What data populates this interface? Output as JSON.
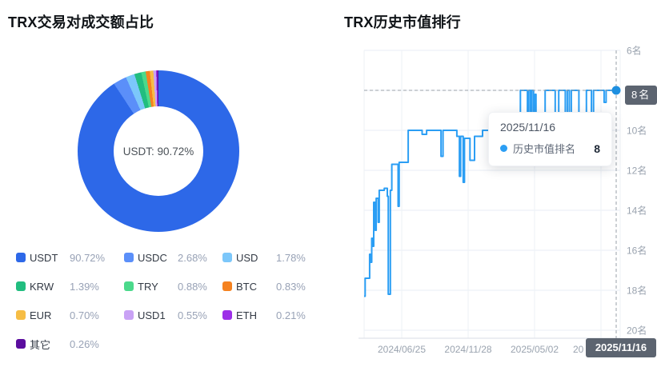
{
  "left_panel": {
    "title": "TRX交易对成交额占比",
    "center_label": "USDT: 90.72%",
    "legend": [
      {
        "label": "USDT",
        "value": "90.72%",
        "color": "#2d68e8"
      },
      {
        "label": "USDC",
        "value": "2.68%",
        "color": "#5b8ff9"
      },
      {
        "label": "USD",
        "value": "1.78%",
        "color": "#7cc7fa"
      },
      {
        "label": "KRW",
        "value": "1.39%",
        "color": "#21bd7f"
      },
      {
        "label": "TRY",
        "value": "0.88%",
        "color": "#4bd98b"
      },
      {
        "label": "BTC",
        "value": "0.83%",
        "color": "#f58220"
      },
      {
        "label": "EUR",
        "value": "0.70%",
        "color": "#f6bd45"
      },
      {
        "label": "USD1",
        "value": "0.55%",
        "color": "#c9a2f5"
      },
      {
        "label": "ETH",
        "value": "0.21%",
        "color": "#9d2fe8"
      },
      {
        "label": "其它",
        "value": "0.26%",
        "color": "#5b0d9e"
      }
    ]
  },
  "right_panel": {
    "title": "TRX历史市值排行",
    "tooltip": {
      "date": "2025/11/16",
      "series_label": "历史市值排名",
      "value": "8"
    },
    "axis_badge": "8名",
    "x_badge": "2025/11/16",
    "y_ticks": [
      "6名",
      "8名",
      "10名",
      "12名",
      "14名",
      "16名",
      "18名",
      "20名"
    ],
    "x_ticks": [
      "2024/06/25",
      "2024/11/28",
      "2025/05/02",
      "20"
    ]
  },
  "chart_data": [
    {
      "type": "pie",
      "subtype": "donut",
      "title": "TRX交易对成交额占比",
      "labels": [
        "USDT",
        "USDC",
        "USD",
        "KRW",
        "TRY",
        "BTC",
        "EUR",
        "USD1",
        "ETH",
        "其它"
      ],
      "values": [
        90.72,
        2.68,
        1.78,
        1.39,
        0.88,
        0.83,
        0.7,
        0.55,
        0.21,
        0.26
      ],
      "colors": [
        "#2d68e8",
        "#5b8ff9",
        "#7cc7fa",
        "#21bd7f",
        "#4bd98b",
        "#f58220",
        "#f6bd45",
        "#c9a2f5",
        "#9d2fe8",
        "#5b0d9e"
      ],
      "center_label": "USDT: 90.72%",
      "start_angle_deg": 0,
      "direction": "clockwise",
      "legend_position": "bottom"
    },
    {
      "type": "line",
      "title": "TRX历史市值排行",
      "line_color": "#2b9ef4",
      "grid": true,
      "legend_position": "none",
      "y_axis": {
        "min": 6,
        "max": 20,
        "tick_step": 2,
        "unit": "名",
        "inverted": true,
        "side": "right"
      },
      "x_tick_labels": [
        "2024/06/25",
        "2024/11/28",
        "2025/05/02",
        "2025/11/16"
      ],
      "highlight_point": {
        "date": "2025/11/16",
        "series": "历史市值排名",
        "rank": 8
      },
      "series": [
        {
          "name": "历史市值排名",
          "points_x_fraction_rank": [
            [
              0.0,
              18.3
            ],
            [
              0.004,
              18.3
            ],
            [
              0.004,
              17.4
            ],
            [
              0.022,
              17.4
            ],
            [
              0.022,
              16.2
            ],
            [
              0.026,
              16.2
            ],
            [
              0.026,
              16.6
            ],
            [
              0.03,
              16.6
            ],
            [
              0.03,
              15.4
            ],
            [
              0.034,
              15.4
            ],
            [
              0.034,
              15.8
            ],
            [
              0.038,
              15.8
            ],
            [
              0.038,
              13.6
            ],
            [
              0.044,
              13.6
            ],
            [
              0.044,
              15.0
            ],
            [
              0.048,
              15.0
            ],
            [
              0.048,
              13.4
            ],
            [
              0.056,
              13.4
            ],
            [
              0.056,
              14.6
            ],
            [
              0.06,
              14.6
            ],
            [
              0.06,
              13.0
            ],
            [
              0.08,
              13.0
            ],
            [
              0.08,
              12.9
            ],
            [
              0.092,
              12.9
            ],
            [
              0.092,
              13.3
            ],
            [
              0.096,
              13.3
            ],
            [
              0.096,
              18.2
            ],
            [
              0.104,
              18.2
            ],
            [
              0.104,
              13.0
            ],
            [
              0.11,
              13.0
            ],
            [
              0.11,
              11.7
            ],
            [
              0.135,
              11.7
            ],
            [
              0.135,
              13.8
            ],
            [
              0.139,
              13.8
            ],
            [
              0.139,
              11.6
            ],
            [
              0.175,
              11.6
            ],
            [
              0.175,
              10.0
            ],
            [
              0.23,
              10.0
            ],
            [
              0.23,
              10.2
            ],
            [
              0.248,
              10.2
            ],
            [
              0.248,
              10.0
            ],
            [
              0.305,
              10.0
            ],
            [
              0.305,
              11.3
            ],
            [
              0.313,
              11.3
            ],
            [
              0.313,
              10.0
            ],
            [
              0.368,
              10.0
            ],
            [
              0.368,
              10.3
            ],
            [
              0.378,
              10.3
            ],
            [
              0.378,
              12.3
            ],
            [
              0.383,
              12.3
            ],
            [
              0.383,
              10.3
            ],
            [
              0.393,
              10.3
            ],
            [
              0.393,
              12.6
            ],
            [
              0.398,
              12.6
            ],
            [
              0.398,
              10.4
            ],
            [
              0.42,
              10.4
            ],
            [
              0.42,
              11.5
            ],
            [
              0.438,
              11.5
            ],
            [
              0.438,
              10.3
            ],
            [
              0.47,
              10.3
            ],
            [
              0.47,
              10.0
            ],
            [
              0.52,
              10.0
            ],
            [
              0.52,
              9.5
            ],
            [
              0.57,
              9.5
            ],
            [
              0.57,
              9.3
            ],
            [
              0.62,
              9.3
            ],
            [
              0.62,
              8.0
            ],
            [
              0.648,
              8.0
            ],
            [
              0.648,
              9.5
            ],
            [
              0.653,
              9.5
            ],
            [
              0.653,
              8.0
            ],
            [
              0.66,
              8.0
            ],
            [
              0.66,
              9.6
            ],
            [
              0.665,
              9.6
            ],
            [
              0.665,
              8.0
            ],
            [
              0.672,
              8.0
            ],
            [
              0.672,
              9.5
            ],
            [
              0.678,
              9.5
            ],
            [
              0.678,
              8.2
            ],
            [
              0.682,
              8.2
            ],
            [
              0.682,
              9.3
            ],
            [
              0.718,
              9.3
            ],
            [
              0.718,
              8.0
            ],
            [
              0.758,
              8.0
            ],
            [
              0.758,
              9.4
            ],
            [
              0.772,
              9.4
            ],
            [
              0.772,
              8.0
            ],
            [
              0.798,
              8.0
            ],
            [
              0.798,
              9.5
            ],
            [
              0.806,
              9.5
            ],
            [
              0.806,
              8.0
            ],
            [
              0.814,
              8.0
            ],
            [
              0.814,
              9.6
            ],
            [
              0.822,
              9.6
            ],
            [
              0.822,
              8.0
            ],
            [
              0.852,
              8.0
            ],
            [
              0.852,
              9.4
            ],
            [
              0.882,
              9.4
            ],
            [
              0.882,
              8.0
            ],
            [
              0.902,
              8.0
            ],
            [
              0.902,
              9.6
            ],
            [
              0.91,
              9.6
            ],
            [
              0.91,
              8.0
            ],
            [
              0.952,
              8.0
            ],
            [
              0.952,
              8.6
            ],
            [
              0.96,
              8.6
            ],
            [
              0.96,
              8.0
            ],
            [
              1.0,
              8.0
            ]
          ]
        }
      ]
    }
  ]
}
